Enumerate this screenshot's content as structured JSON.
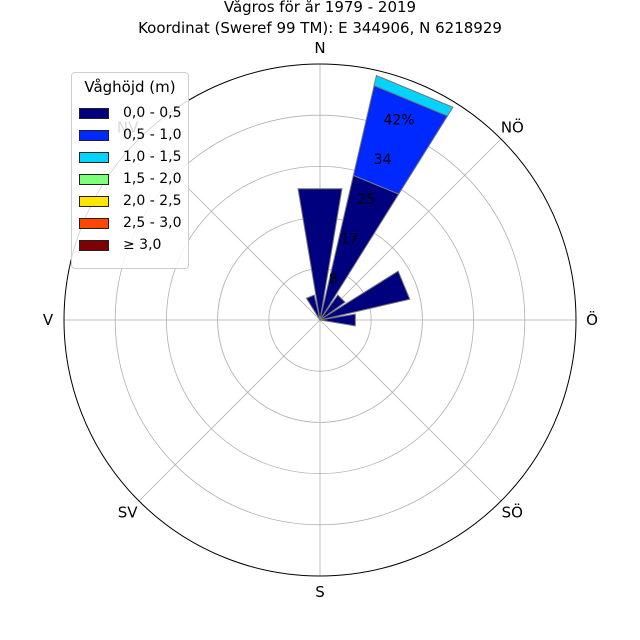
{
  "chart_data": {
    "type": "polar-bar",
    "title": "Vågros för år 1979 - 2019",
    "subtitle": "Koordinat (Sweref 99 TM): E 344906, N 6218929",
    "directions": [
      "N",
      "NÖ",
      "Ö",
      "SÖ",
      "S",
      "SV",
      "V",
      "NV"
    ],
    "radial_ticks": [
      "8",
      "17",
      "25",
      "34",
      "42%"
    ],
    "radial_max": 50,
    "legend": {
      "title": "Våghöjd (m)",
      "placement": "upper-left",
      "entries": [
        {
          "label": "0,0 - 0,5",
          "color": "#00007f"
        },
        {
          "label": "0,5 - 1,0",
          "color": "#0029ff"
        },
        {
          "label": "1,0 - 1,5",
          "color": "#00d4ff"
        },
        {
          "label": "1,5 - 2,0",
          "color": "#7dff7a"
        },
        {
          "label": "2,0 - 2,5",
          "color": "#ffe500"
        },
        {
          "label": "2,5 - 3,0",
          "color": "#ff4700"
        },
        {
          "label": "≥ 3,0",
          "color": "#7f0000"
        }
      ]
    },
    "sectors": [
      {
        "direction_deg": 0,
        "values": [
          26,
          0,
          0,
          0,
          0,
          0,
          0
        ]
      },
      {
        "direction_deg": 22.5,
        "values": [
          29,
          18,
          2,
          0,
          0,
          0,
          0
        ]
      },
      {
        "direction_deg": 45,
        "values": [
          6,
          0,
          0,
          0,
          0,
          0,
          0
        ]
      },
      {
        "direction_deg": 67.5,
        "values": [
          18,
          0,
          0,
          0,
          0,
          0,
          0
        ]
      },
      {
        "direction_deg": 90,
        "values": [
          7,
          0,
          0,
          0,
          0,
          0,
          0
        ]
      },
      {
        "direction_deg": 337.5,
        "values": [
          5,
          0,
          0,
          0,
          0,
          0,
          0
        ]
      }
    ]
  }
}
